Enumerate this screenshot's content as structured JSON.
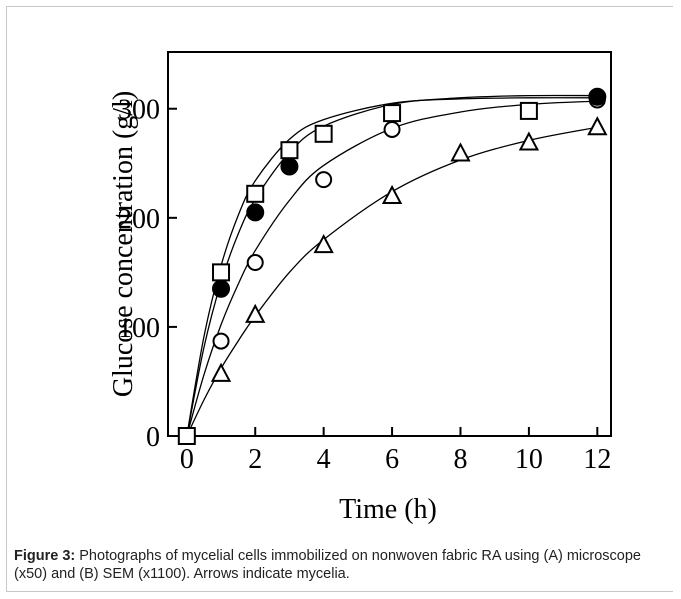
{
  "chart_data": {
    "type": "scatter",
    "x_label": "Time (h)",
    "y_label": "Glucose concentration (g/l)",
    "xlim": [
      -0.55,
      12.4
    ],
    "ylim": [
      0,
      352
    ],
    "xticks": [
      0,
      2,
      4,
      6,
      8,
      10,
      12
    ],
    "yticks": [
      0,
      100,
      200,
      300
    ],
    "fit_x": [
      0,
      0.5,
      1,
      1.5,
      2,
      3,
      4,
      6,
      8,
      10,
      12
    ],
    "series": [
      {
        "marker": "open-circle",
        "color": "#000000",
        "x": [
          1,
          2,
          4,
          6,
          12
        ],
        "values": [
          87,
          159,
          235,
          281,
          308
        ],
        "fit": [
          0,
          56,
          102,
          139,
          170,
          216,
          248,
          282,
          297,
          304,
          307
        ]
      },
      {
        "marker": "filled-circle",
        "color": "#000000",
        "x": [
          1,
          2,
          3,
          12
        ],
        "values": [
          135,
          205,
          247,
          311
        ],
        "fit": [
          0,
          81,
          141,
          185,
          217,
          260,
          284,
          304,
          310,
          312,
          312
        ]
      },
      {
        "marker": "open-triangle",
        "color": "#000000",
        "x": [
          1,
          2,
          4,
          6,
          8,
          10,
          12
        ],
        "values": [
          57,
          111,
          175,
          220,
          259,
          269,
          283
        ],
        "fit": [
          0,
          33,
          62,
          87,
          110,
          150,
          180,
          224,
          253,
          271,
          283
        ]
      },
      {
        "marker": "open-square",
        "color": "#000000",
        "x": [
          0,
          1,
          2,
          3,
          4,
          6,
          10
        ],
        "values": [
          0,
          150,
          222,
          262,
          277,
          296,
          298
        ],
        "fit": [
          0,
          91,
          156,
          202,
          234,
          272,
          290,
          305,
          309,
          310,
          310
        ]
      }
    ]
  },
  "caption": {
    "label": "Figure 3:",
    "text": " Photographs of mycelial cells immobilized on nonwoven fabric RA using (A) microscope (x50) and (B) SEM (x1100).  Arrows indicate mycelia."
  }
}
